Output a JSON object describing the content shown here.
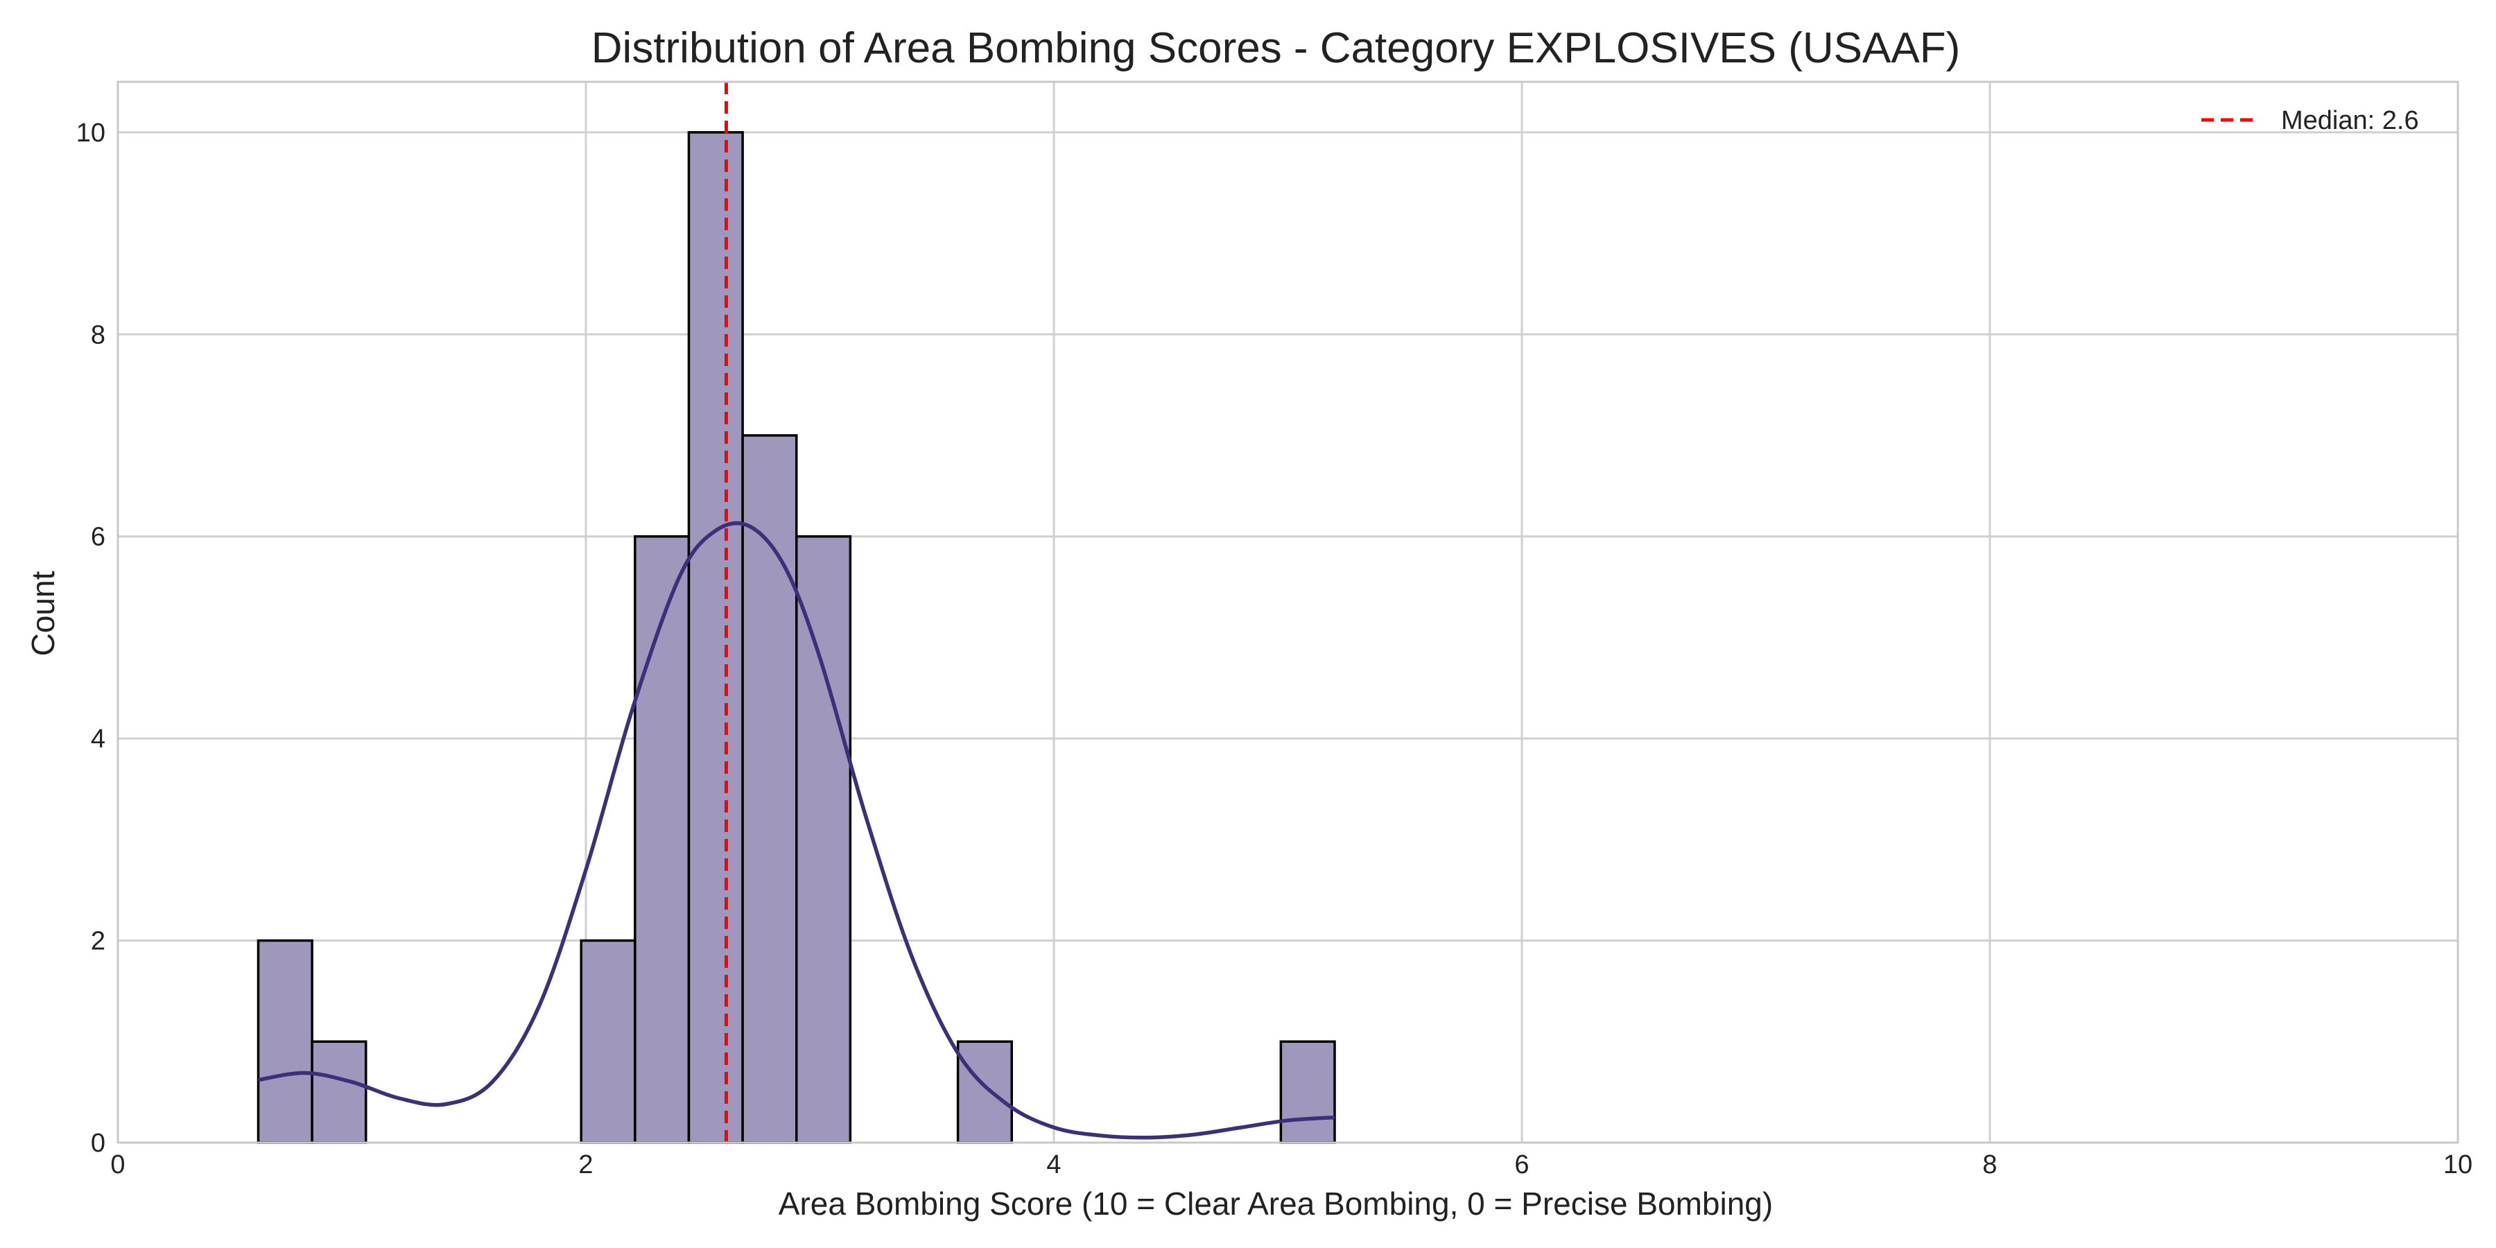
{
  "chart_data": {
    "type": "bar",
    "title": "Distribution of Area Bombing Scores - Category EXPLOSIVES (USAAF)",
    "xlabel": "Area Bombing Score (10 = Clear Area Bombing, 0 = Precise Bombing)",
    "ylabel": "Count",
    "xlim": [
      0,
      10
    ],
    "ylim": [
      0,
      10.5
    ],
    "xticks": [
      "0",
      "2",
      "4",
      "6",
      "8",
      "10"
    ],
    "yticks": [
      "0",
      "2",
      "4",
      "6",
      "8",
      "10"
    ],
    "grid": true,
    "legend_position": "top-right",
    "bins": [
      {
        "start": 0.6,
        "end": 0.83,
        "count": 2
      },
      {
        "start": 0.83,
        "end": 1.06,
        "count": 1
      },
      {
        "start": 1.06,
        "end": 1.29,
        "count": 0
      },
      {
        "start": 1.29,
        "end": 1.52,
        "count": 0
      },
      {
        "start": 1.52,
        "end": 1.75,
        "count": 0
      },
      {
        "start": 1.75,
        "end": 1.98,
        "count": 0
      },
      {
        "start": 1.98,
        "end": 2.21,
        "count": 2
      },
      {
        "start": 2.21,
        "end": 2.44,
        "count": 6
      },
      {
        "start": 2.44,
        "end": 2.67,
        "count": 10
      },
      {
        "start": 2.67,
        "end": 2.9,
        "count": 7
      },
      {
        "start": 2.9,
        "end": 3.13,
        "count": 6
      },
      {
        "start": 3.13,
        "end": 3.36,
        "count": 0
      },
      {
        "start": 3.36,
        "end": 3.59,
        "count": 0
      },
      {
        "start": 3.59,
        "end": 3.82,
        "count": 1
      },
      {
        "start": 3.82,
        "end": 4.05,
        "count": 0
      },
      {
        "start": 4.05,
        "end": 4.28,
        "count": 0
      },
      {
        "start": 4.28,
        "end": 4.51,
        "count": 0
      },
      {
        "start": 4.51,
        "end": 4.74,
        "count": 0
      },
      {
        "start": 4.74,
        "end": 4.97,
        "count": 0
      },
      {
        "start": 4.97,
        "end": 5.2,
        "count": 1
      }
    ],
    "kde": {
      "x": [
        0.6,
        0.8,
        1.0,
        1.2,
        1.4,
        1.6,
        1.8,
        2.0,
        2.2,
        2.4,
        2.55,
        2.7,
        2.85,
        3.0,
        3.2,
        3.4,
        3.6,
        3.8,
        4.0,
        4.2,
        4.4,
        4.6,
        4.8,
        5.0,
        5.2
      ],
      "y": [
        0.62,
        0.69,
        0.6,
        0.44,
        0.38,
        0.6,
        1.35,
        2.7,
        4.3,
        5.6,
        6.05,
        6.1,
        5.7,
        4.8,
        3.2,
        1.8,
        0.85,
        0.38,
        0.15,
        0.07,
        0.05,
        0.08,
        0.15,
        0.22,
        0.25
      ]
    },
    "median": {
      "value": 2.6,
      "label": "Median: 2.6"
    },
    "colors": {
      "bar_fill": "#a097bd",
      "bar_edge": "#000000",
      "kde_line": "#3f2f7a",
      "median_line": "#ff0000",
      "grid": "#d0d0d0",
      "axes_edge": "#c8c8c8"
    }
  }
}
